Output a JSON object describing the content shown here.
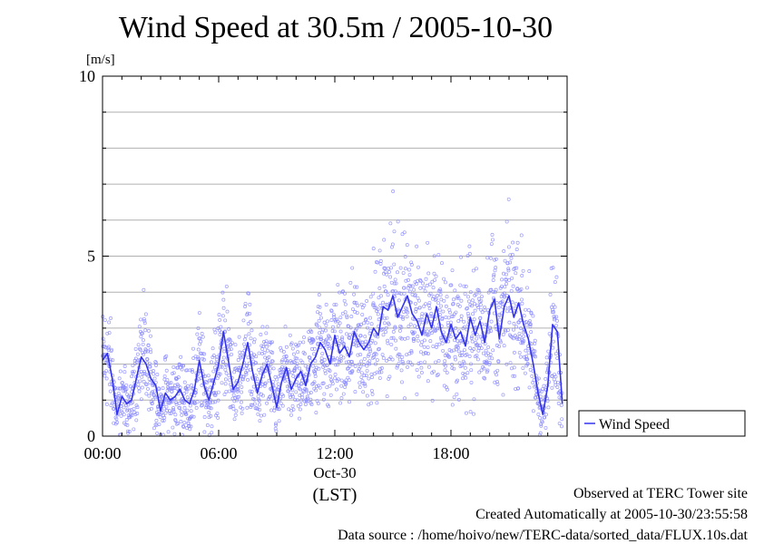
{
  "chart_data": {
    "type": "scatter",
    "title": "Wind Speed at 30.5m / 2005-10-30",
    "ylabel": "[m/s]",
    "xlabel": "(LST)",
    "date_label": "Oct-30",
    "ylim": [
      0,
      10
    ],
    "yticks": [
      "0",
      "5",
      "10"
    ],
    "xlim_hours": [
      0,
      24
    ],
    "xticks": [
      {
        "hour": 0,
        "label": "00:00"
      },
      {
        "hour": 6,
        "label": "06:00"
      },
      {
        "hour": 12,
        "label": "12:00"
      },
      {
        "hour": 18,
        "label": "18:00"
      }
    ],
    "grid": true,
    "legend_position": "right",
    "series": [
      {
        "name": "Wind Speed",
        "color": "#3333ee",
        "point_color": "#8888ff",
        "x_hours": [
          0.0,
          0.25,
          0.5,
          0.75,
          1.0,
          1.25,
          1.5,
          1.75,
          2.0,
          2.25,
          2.5,
          2.75,
          3.0,
          3.25,
          3.5,
          3.75,
          4.0,
          4.25,
          4.5,
          4.75,
          5.0,
          5.25,
          5.5,
          5.75,
          6.0,
          6.25,
          6.5,
          6.75,
          7.0,
          7.25,
          7.5,
          7.75,
          8.0,
          8.25,
          8.5,
          8.75,
          9.0,
          9.25,
          9.5,
          9.75,
          10.0,
          10.25,
          10.5,
          10.75,
          11.0,
          11.25,
          11.5,
          11.75,
          12.0,
          12.25,
          12.5,
          12.75,
          13.0,
          13.25,
          13.5,
          13.75,
          14.0,
          14.25,
          14.5,
          14.75,
          15.0,
          15.25,
          15.5,
          15.75,
          16.0,
          16.25,
          16.5,
          16.75,
          17.0,
          17.25,
          17.5,
          17.75,
          18.0,
          18.25,
          18.5,
          18.75,
          19.0,
          19.25,
          19.5,
          19.75,
          20.0,
          20.25,
          20.5,
          20.75,
          21.0,
          21.25,
          21.5,
          21.75,
          22.0,
          22.25,
          22.5,
          22.75,
          23.0,
          23.25,
          23.5,
          23.75
        ],
        "values": [
          2.1,
          2.3,
          1.6,
          0.6,
          1.1,
          0.9,
          1.0,
          1.6,
          2.2,
          2.0,
          1.6,
          1.4,
          0.7,
          1.2,
          1.0,
          1.1,
          1.3,
          1.0,
          0.9,
          1.3,
          2.1,
          1.4,
          1.0,
          1.5,
          2.0,
          2.9,
          2.1,
          1.3,
          1.5,
          2.0,
          2.6,
          1.8,
          1.2,
          1.7,
          2.0,
          1.4,
          0.8,
          1.5,
          1.9,
          1.3,
          1.6,
          1.8,
          1.4,
          2.0,
          2.2,
          2.6,
          2.4,
          2.0,
          2.8,
          2.3,
          2.5,
          2.2,
          2.9,
          2.6,
          2.4,
          2.6,
          3.0,
          2.8,
          3.6,
          3.5,
          3.9,
          3.3,
          3.6,
          3.9,
          3.4,
          3.2,
          2.8,
          3.4,
          3.0,
          3.6,
          2.9,
          2.6,
          3.1,
          2.7,
          2.9,
          2.5,
          3.3,
          2.8,
          3.2,
          2.6,
          3.5,
          3.8,
          2.7,
          3.6,
          3.9,
          3.3,
          3.7,
          3.1,
          2.7,
          2.0,
          1.2,
          0.6,
          1.4,
          3.1,
          2.9,
          0.9
        ]
      }
    ]
  },
  "footer": {
    "line1": "Observed at TERC Tower site",
    "line2": "Created Automatically at 2005-10-30/23:55:58",
    "line3": "Data source : /home/hoivo/new/TERC-data/sorted_data/FLUX.10s.dat"
  }
}
